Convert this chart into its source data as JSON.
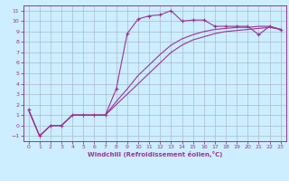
{
  "xlabel": "Windchill (Refroidissement éolien,°C)",
  "bg_color": "#cceeff",
  "grid_color": "#aabbcc",
  "line_color": "#993399",
  "xlim": [
    -0.5,
    23.5
  ],
  "ylim": [
    -1.5,
    11.5
  ],
  "xticks": [
    0,
    1,
    2,
    3,
    4,
    5,
    6,
    7,
    8,
    9,
    10,
    11,
    12,
    13,
    14,
    15,
    16,
    17,
    18,
    19,
    20,
    21,
    22,
    23
  ],
  "yticks": [
    -1,
    0,
    1,
    2,
    3,
    4,
    5,
    6,
    7,
    8,
    9,
    10,
    11
  ],
  "line1_x": [
    0,
    1,
    2,
    3,
    4,
    5,
    6,
    7,
    8,
    9,
    10,
    11,
    12,
    13,
    14,
    15,
    16,
    17,
    18,
    19,
    20,
    21,
    22,
    23
  ],
  "line1_y": [
    1.5,
    -1.0,
    0.0,
    0.0,
    1.0,
    1.0,
    1.0,
    1.0,
    3.5,
    8.8,
    10.2,
    10.5,
    10.6,
    11.0,
    10.0,
    10.1,
    10.1,
    9.5,
    9.5,
    9.5,
    9.5,
    8.7,
    9.5,
    9.2
  ],
  "line2_x": [
    0,
    1,
    2,
    3,
    4,
    5,
    6,
    7,
    8,
    9,
    10,
    11,
    12,
    13,
    14,
    15,
    16,
    17,
    18,
    19,
    20,
    21,
    22,
    23
  ],
  "line2_y": [
    1.5,
    -1.0,
    0.0,
    0.0,
    1.0,
    1.0,
    1.0,
    1.0,
    2.0,
    3.0,
    4.0,
    5.0,
    6.0,
    7.0,
    7.7,
    8.2,
    8.5,
    8.8,
    9.0,
    9.1,
    9.2,
    9.3,
    9.4,
    9.2
  ],
  "line3_x": [
    0,
    1,
    2,
    3,
    4,
    5,
    6,
    7,
    8,
    9,
    10,
    11,
    12,
    13,
    14,
    15,
    16,
    17,
    18,
    19,
    20,
    21,
    22,
    23
  ],
  "line3_y": [
    1.5,
    -1.0,
    0.0,
    0.0,
    1.0,
    1.0,
    1.0,
    1.0,
    2.3,
    3.5,
    4.8,
    5.8,
    6.8,
    7.7,
    8.3,
    8.7,
    9.0,
    9.2,
    9.3,
    9.4,
    9.4,
    9.5,
    9.5,
    9.2
  ]
}
